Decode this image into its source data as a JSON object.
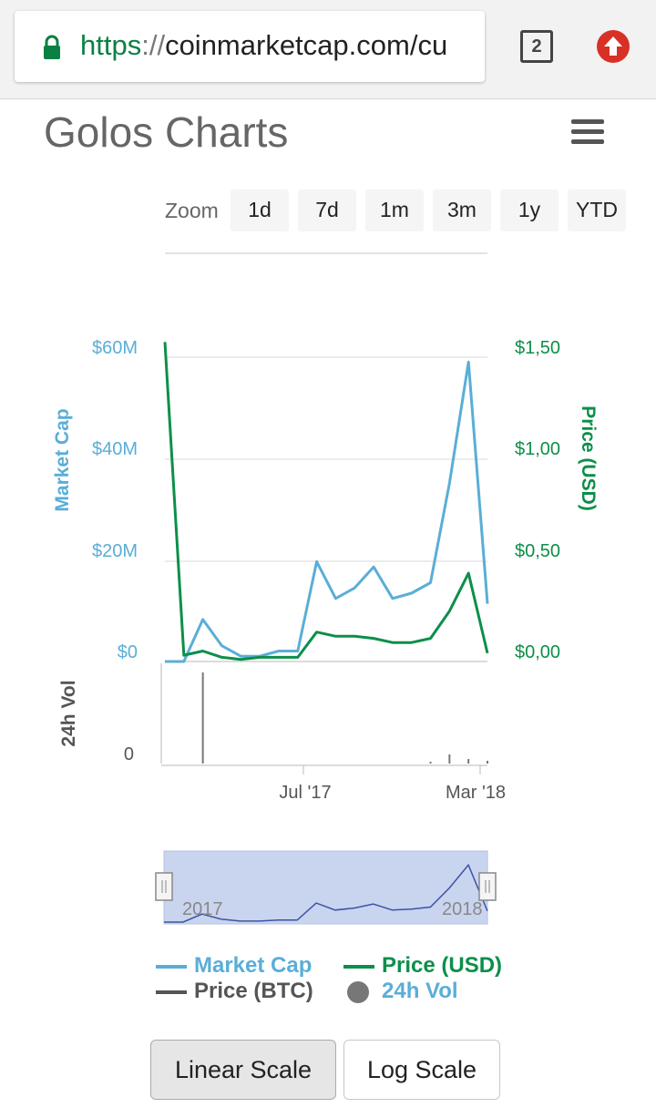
{
  "browser": {
    "url_scheme": "https",
    "url_sep": "://",
    "url_rest": "coinmarketcap.com/cu",
    "tab_count": "2"
  },
  "page": {
    "title": "Golos Charts"
  },
  "zoom": {
    "label": "Zoom",
    "buttons": [
      "1d",
      "7d",
      "1m",
      "3m",
      "1y",
      "YTD"
    ]
  },
  "legend": {
    "market_cap": "Market Cap",
    "price_usd": "Price (USD)",
    "price_btc": "Price (BTC)",
    "vol": "24h Vol"
  },
  "scale_buttons": {
    "linear": "Linear Scale",
    "log": "Log Scale"
  },
  "colors": {
    "market_cap": "#5aaed6",
    "price_usd": "#0c8f4a",
    "price_btc": "#555555",
    "vol": "#777777",
    "navigator_fill": "#c9d4ee",
    "navigator_line": "#3d52a8"
  },
  "chart_data": {
    "type": "line",
    "left_axis": {
      "label": "Market Cap",
      "ticks": [
        "$60M",
        "$40M",
        "$20M",
        "$0"
      ],
      "range": [
        0,
        60
      ]
    },
    "right_axis": {
      "label": "Price (USD)",
      "ticks": [
        "$1,50",
        "$1,00",
        "$0,50",
        "$0,00"
      ],
      "range": [
        0,
        1.5
      ]
    },
    "volume_axis": {
      "label": "24h Vol",
      "ticks": [
        "0"
      ]
    },
    "x_ticks": [
      "Jul '17",
      "Mar '18"
    ],
    "x": [
      "2016-10",
      "2016-11",
      "2016-12",
      "2017-01",
      "2017-02",
      "2017-03",
      "2017-04",
      "2017-05",
      "2017-06",
      "2017-07",
      "2017-08",
      "2017-09",
      "2017-10",
      "2017-11",
      "2017-12",
      "2018-01",
      "2018-02",
      "2018-03"
    ],
    "series": [
      {
        "name": "Market Cap",
        "axis": "left",
        "values": [
          0,
          0,
          8,
          3,
          1,
          1,
          2,
          2,
          19,
          12,
          14,
          18,
          12,
          13,
          15,
          34,
          57,
          11
        ]
      },
      {
        "name": "Price (USD)",
        "axis": "right",
        "values": [
          1.52,
          0.03,
          0.05,
          0.02,
          0.01,
          0.02,
          0.02,
          0.02,
          0.14,
          0.12,
          0.12,
          0.11,
          0.09,
          0.09,
          0.11,
          0.24,
          0.42,
          0.04
        ]
      },
      {
        "name": "24h Vol",
        "axis": "volume",
        "values": [
          0,
          0,
          1,
          0,
          0,
          0,
          0,
          0,
          0,
          0,
          0,
          0,
          0,
          0,
          0.02,
          0.1,
          0.05,
          0.03
        ]
      }
    ],
    "navigator_ticks": [
      "2017",
      "2018"
    ]
  }
}
